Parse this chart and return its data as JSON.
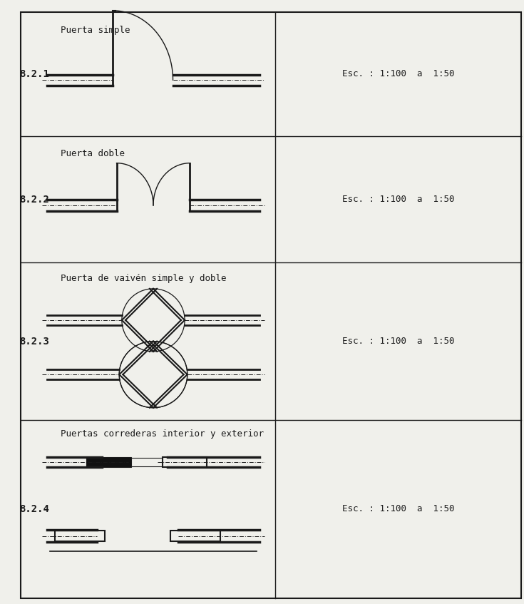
{
  "bg_color": "#f0f0eb",
  "line_color": "#1a1a1a",
  "row_labels": [
    "8.2.1",
    "8.2.2",
    "8.2.3",
    "8.2.4"
  ],
  "row_titles": [
    "Puerta simple",
    "Puerta doble",
    "Puerta de vaivén simple y doble",
    "Puertas correderas interior y exterior"
  ],
  "scale_text": "Esc. : 1:100  a  1:50",
  "col_split": 0.525,
  "row_tops": [
    0.98,
    0.775,
    0.565,
    0.305,
    0.01
  ]
}
